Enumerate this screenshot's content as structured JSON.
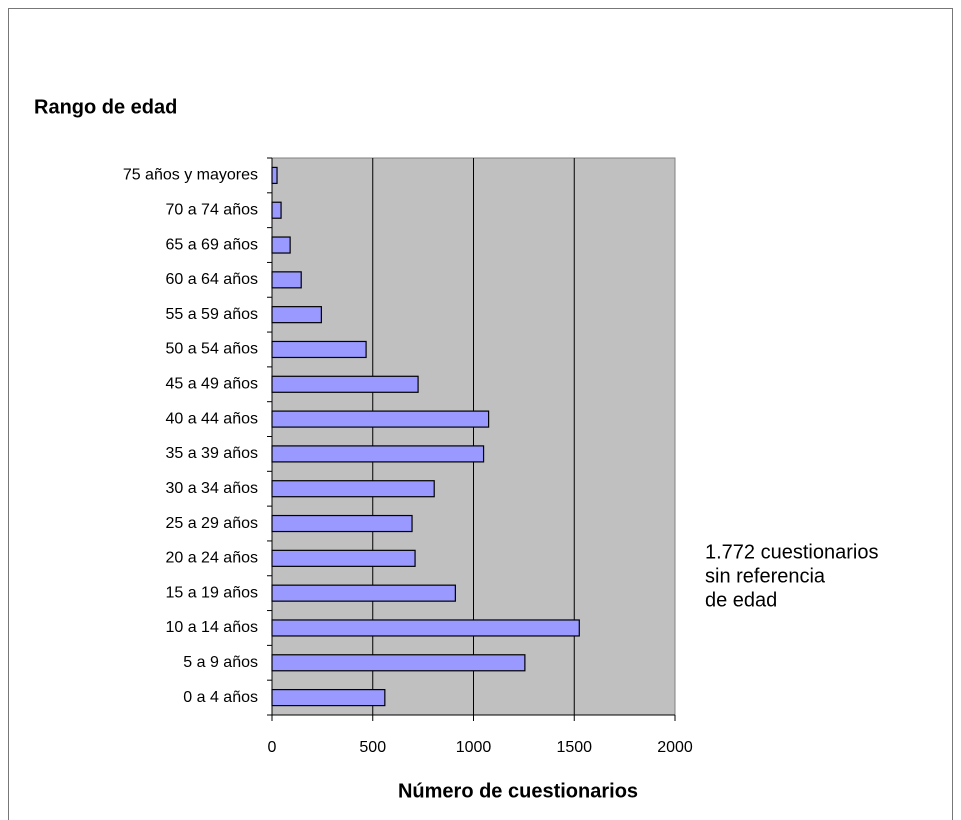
{
  "chart_data": {
    "type": "bar",
    "orientation": "horizontal",
    "title": "Rango de edad",
    "x_label": "Número de cuestionarios",
    "annotation": [
      "1.772 cuestionarios",
      "sin referencia",
      "de edad"
    ],
    "categories": [
      "0 a 4 años",
      "5 a 9 años",
      "10 a 14 años",
      "15 a 19 años",
      "20 a 24 años",
      "25 a 29 años",
      "30 a 34 años",
      "35 a 39 años",
      "40 a 44 años",
      "45 a 49 años",
      "50 a 54 años",
      "55 a 59 años",
      "60 a 64 años",
      "65 a 69 años",
      "70 a 74 años",
      "75 años y mayores"
    ],
    "values": [
      560,
      1255,
      1525,
      910,
      710,
      695,
      805,
      1050,
      1075,
      725,
      467,
      245,
      145,
      90,
      45,
      25
    ],
    "color": "#9999ff",
    "xlim": [
      0,
      2000
    ],
    "xticks": [
      0,
      500,
      1000,
      1500,
      2000
    ],
    "grid": true
  }
}
